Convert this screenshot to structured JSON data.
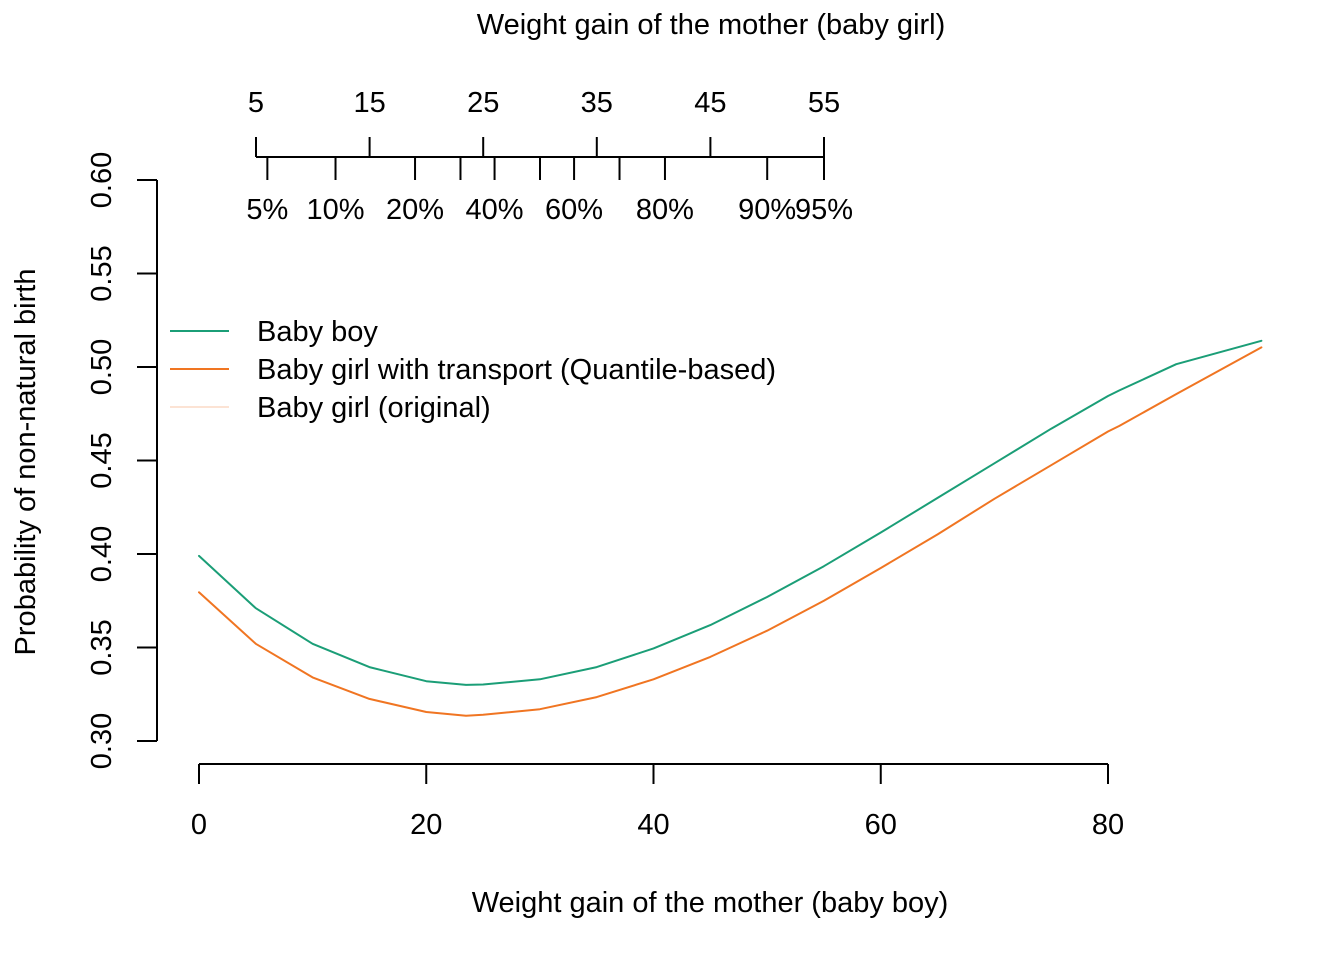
{
  "chart_data": {
    "type": "line",
    "title": "",
    "xlabel": "Weight gain of the mother (baby boy)",
    "ylabel": "Probability of non-natural birth",
    "xlim": [
      -0.8,
      93.5
    ],
    "ylim": [
      0.3,
      0.6
    ],
    "x_ticks": [
      "0",
      "20",
      "40",
      "60",
      "80"
    ],
    "x_tick_values": [
      0,
      20,
      40,
      60,
      80
    ],
    "y_ticks": [
      "0.30",
      "0.35",
      "0.40",
      "0.45",
      "0.50",
      "0.55",
      "0.60"
    ],
    "y_tick_values": [
      0.3,
      0.35,
      0.4,
      0.45,
      0.5,
      0.55,
      0.6
    ],
    "grid": false,
    "legend_position": "left",
    "secondary_axis": {
      "label": "Weight gain of the mother (baby girl)",
      "position": "top",
      "ticks": [
        "5",
        "15",
        "25",
        "35",
        "45",
        "55"
      ],
      "tick_values": [
        5,
        15,
        25,
        35,
        45,
        55
      ],
      "percentile_labels": [
        "5%",
        "10%",
        "20%",
        "40%",
        "60%",
        "80%",
        "90%",
        "95%"
      ],
      "percentile_weights": [
        6,
        12,
        19,
        26,
        33,
        41,
        50,
        55
      ],
      "minor_tick_weights": [
        6,
        12,
        19,
        23,
        26,
        30,
        33,
        37,
        41,
        50,
        55
      ]
    },
    "series": [
      {
        "name": "Baby boy",
        "color": "#1B9E77",
        "x": [
          0,
          5,
          10,
          15,
          20,
          23.5,
          25,
          30,
          35,
          40,
          45,
          50,
          55,
          60,
          65,
          70,
          75,
          80,
          81,
          86,
          93.5
        ],
        "y": [
          0.399,
          0.371,
          0.352,
          0.3395,
          0.332,
          0.33,
          0.3302,
          0.333,
          0.3395,
          0.3495,
          0.362,
          0.377,
          0.3935,
          0.4115,
          0.43,
          0.4485,
          0.467,
          0.4845,
          0.4875,
          0.5015,
          0.514
        ]
      },
      {
        "name": "Baby girl with transport (Quantile-based)",
        "color": "#F07522",
        "x": [
          0,
          5,
          10,
          15,
          20,
          23.5,
          25,
          30,
          35,
          40,
          45,
          50,
          55,
          60,
          65,
          70,
          75,
          80,
          81,
          86,
          93.5
        ],
        "y": [
          0.3795,
          0.352,
          0.334,
          0.3225,
          0.3155,
          0.3135,
          0.314,
          0.317,
          0.3235,
          0.333,
          0.345,
          0.359,
          0.375,
          0.3925,
          0.4105,
          0.4295,
          0.4475,
          0.4655,
          0.4685,
          0.4855,
          0.5105
        ]
      },
      {
        "name": "Baby girl (original)",
        "color": "#FCE3D4",
        "x": [],
        "y": []
      }
    ]
  }
}
